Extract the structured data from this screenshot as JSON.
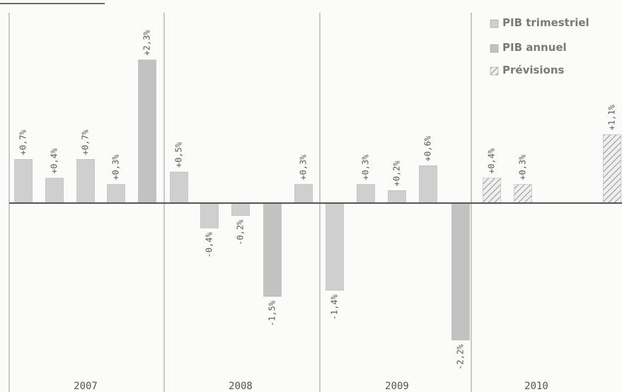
{
  "chart_data": {
    "type": "bar",
    "title": "",
    "xlabel": "",
    "ylabel": "",
    "ylim": [
      -2.2,
      2.3
    ],
    "grid": false,
    "legend_position": "top-right",
    "colors": {
      "trimestriel": "#cfcfcf",
      "annuel": "#c2c2c2",
      "previsions": "#9a9a9a",
      "axis": "#555555",
      "separator": "#9a9a9a"
    },
    "legend": [
      {
        "label": "PIB trimestriel",
        "type": "trimestriel"
      },
      {
        "label": "PIB annuel",
        "type": "annuel"
      },
      {
        "label": "Prévisions",
        "type": "previsions"
      }
    ],
    "years": [
      "2007",
      "2008",
      "2009",
      "2010"
    ],
    "bars": [
      {
        "year": "2007",
        "type": "trimestriel",
        "value": 0.7,
        "label": "+0,7%"
      },
      {
        "year": "2007",
        "type": "trimestriel",
        "value": 0.4,
        "label": "+0,4%"
      },
      {
        "year": "2007",
        "type": "trimestriel",
        "value": 0.7,
        "label": "+0,7%"
      },
      {
        "year": "2007",
        "type": "trimestriel",
        "value": 0.3,
        "label": "+0,3%"
      },
      {
        "year": "2007",
        "type": "annuel",
        "value": 2.3,
        "label": "+2,3%"
      },
      {
        "year": "2008",
        "type": "trimestriel",
        "value": 0.5,
        "label": "+0,5%"
      },
      {
        "year": "2008",
        "type": "trimestriel",
        "value": -0.4,
        "label": "-0,4%"
      },
      {
        "year": "2008",
        "type": "trimestriel",
        "value": -0.2,
        "label": "-0,2%"
      },
      {
        "year": "2008",
        "type": "annuel",
        "value": -1.5,
        "label": "-1,5%"
      },
      {
        "year": "2008",
        "type": "trimestriel",
        "value": 0.3,
        "label": "+0,3%"
      },
      {
        "year": "2009",
        "type": "trimestriel",
        "value": -1.4,
        "label": "-1,4%"
      },
      {
        "year": "2009",
        "type": "trimestriel",
        "value": 0.3,
        "label": "+0,3%"
      },
      {
        "year": "2009",
        "type": "trimestriel",
        "value": 0.2,
        "label": "+0,2%"
      },
      {
        "year": "2009",
        "type": "trimestriel",
        "value": 0.6,
        "label": "+0,6%"
      },
      {
        "year": "2009",
        "type": "annuel",
        "value": -2.2,
        "label": "-2,2%"
      },
      {
        "year": "2010",
        "type": "previsions",
        "value": 0.4,
        "label": "+0,4%"
      },
      {
        "year": "2010",
        "type": "previsions",
        "value": 0.3,
        "label": "+0,3%"
      },
      {
        "year": "2010",
        "type": "previsions",
        "value": 1.1,
        "label": "+1,1%"
      }
    ]
  }
}
